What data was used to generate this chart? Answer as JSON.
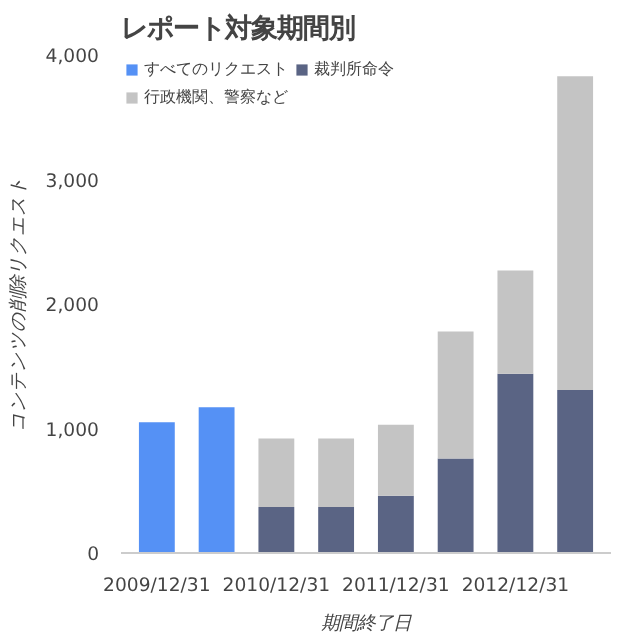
{
  "chart_data": {
    "type": "bar",
    "title": "レポート対象期間別",
    "xlabel": "期間終了日",
    "ylabel": "コンテンツの削除リクエスト",
    "stacked": true,
    "legend": "top",
    "categories": [
      "2009/12/31",
      null,
      "2010/12/31",
      null,
      "2011/12/31",
      null,
      "2012/12/31",
      null
    ],
    "series": [
      {
        "name": "すべてのリクエスト",
        "color": "#5591f5",
        "values": [
          1050,
          1170,
          null,
          null,
          null,
          null,
          null,
          null
        ]
      },
      {
        "name": "裁判所命令",
        "color": "#5a6484",
        "values": [
          null,
          null,
          370,
          370,
          460,
          760,
          1440,
          1310
        ]
      },
      {
        "name": "行政機関、警察など",
        "color": "#c4c4c4",
        "values": [
          null,
          null,
          550,
          550,
          570,
          1020,
          830,
          2520
        ]
      }
    ],
    "ylim": [
      0,
      4000
    ],
    "yticks": [
      {
        "value": 0,
        "label": "0"
      },
      {
        "value": 1000,
        "label": "1,000"
      },
      {
        "value": 2000,
        "label": "2,000"
      },
      {
        "value": 3000,
        "label": "3,000"
      },
      {
        "value": 4000,
        "label": "4,000"
      }
    ],
    "grid": false
  }
}
